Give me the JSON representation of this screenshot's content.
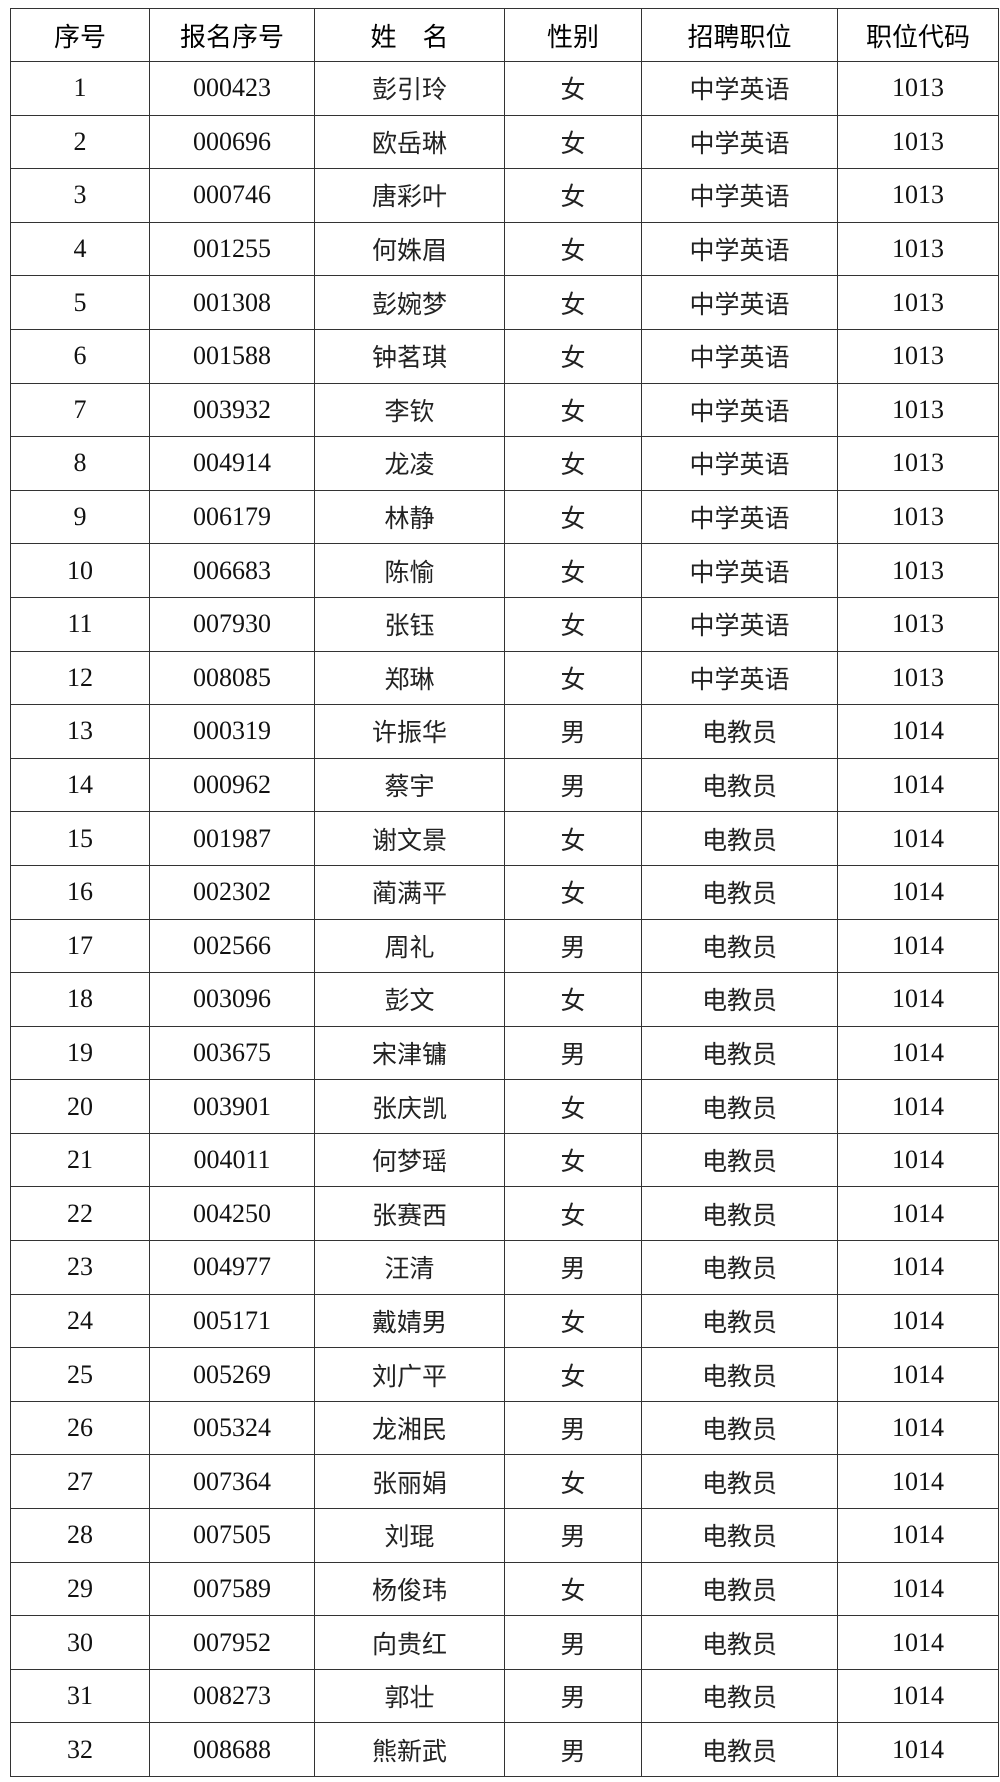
{
  "table": {
    "headers": [
      "序号",
      "报名序号",
      "姓　名",
      "性别",
      "招聘职位",
      "职位代码"
    ],
    "rows": [
      [
        "1",
        "000423",
        "彭引玲",
        "女",
        "中学英语",
        "1013"
      ],
      [
        "2",
        "000696",
        "欧岳琳",
        "女",
        "中学英语",
        "1013"
      ],
      [
        "3",
        "000746",
        "唐彩叶",
        "女",
        "中学英语",
        "1013"
      ],
      [
        "4",
        "001255",
        "何姝眉",
        "女",
        "中学英语",
        "1013"
      ],
      [
        "5",
        "001308",
        "彭婉梦",
        "女",
        "中学英语",
        "1013"
      ],
      [
        "6",
        "001588",
        "钟茗琪",
        "女",
        "中学英语",
        "1013"
      ],
      [
        "7",
        "003932",
        "李钦",
        "女",
        "中学英语",
        "1013"
      ],
      [
        "8",
        "004914",
        "龙凌",
        "女",
        "中学英语",
        "1013"
      ],
      [
        "9",
        "006179",
        "林静",
        "女",
        "中学英语",
        "1013"
      ],
      [
        "10",
        "006683",
        "陈愉",
        "女",
        "中学英语",
        "1013"
      ],
      [
        "11",
        "007930",
        "张钰",
        "女",
        "中学英语",
        "1013"
      ],
      [
        "12",
        "008085",
        "郑琳",
        "女",
        "中学英语",
        "1013"
      ],
      [
        "13",
        "000319",
        "许振华",
        "男",
        "电教员",
        "1014"
      ],
      [
        "14",
        "000962",
        "蔡宇",
        "男",
        "电教员",
        "1014"
      ],
      [
        "15",
        "001987",
        "谢文景",
        "女",
        "电教员",
        "1014"
      ],
      [
        "16",
        "002302",
        "蔺满平",
        "女",
        "电教员",
        "1014"
      ],
      [
        "17",
        "002566",
        "周礼",
        "男",
        "电教员",
        "1014"
      ],
      [
        "18",
        "003096",
        "彭文",
        "女",
        "电教员",
        "1014"
      ],
      [
        "19",
        "003675",
        "宋津镛",
        "男",
        "电教员",
        "1014"
      ],
      [
        "20",
        "003901",
        "张庆凯",
        "女",
        "电教员",
        "1014"
      ],
      [
        "21",
        "004011",
        "何梦瑶",
        "女",
        "电教员",
        "1014"
      ],
      [
        "22",
        "004250",
        "张赛西",
        "女",
        "电教员",
        "1014"
      ],
      [
        "23",
        "004977",
        "汪清",
        "男",
        "电教员",
        "1014"
      ],
      [
        "24",
        "005171",
        "戴婧男",
        "女",
        "电教员",
        "1014"
      ],
      [
        "25",
        "005269",
        "刘广平",
        "女",
        "电教员",
        "1014"
      ],
      [
        "26",
        "005324",
        "龙湘民",
        "男",
        "电教员",
        "1014"
      ],
      [
        "27",
        "007364",
        "张丽娟",
        "女",
        "电教员",
        "1014"
      ],
      [
        "28",
        "007505",
        "刘琨",
        "男",
        "电教员",
        "1014"
      ],
      [
        "29",
        "007589",
        "杨俊玮",
        "女",
        "电教员",
        "1014"
      ],
      [
        "30",
        "007952",
        "向贵红",
        "男",
        "电教员",
        "1014"
      ],
      [
        "31",
        "008273",
        "郭壮",
        "男",
        "电教员",
        "1014"
      ],
      [
        "32",
        "008688",
        "熊新武",
        "男",
        "电教员",
        "1014"
      ]
    ]
  }
}
